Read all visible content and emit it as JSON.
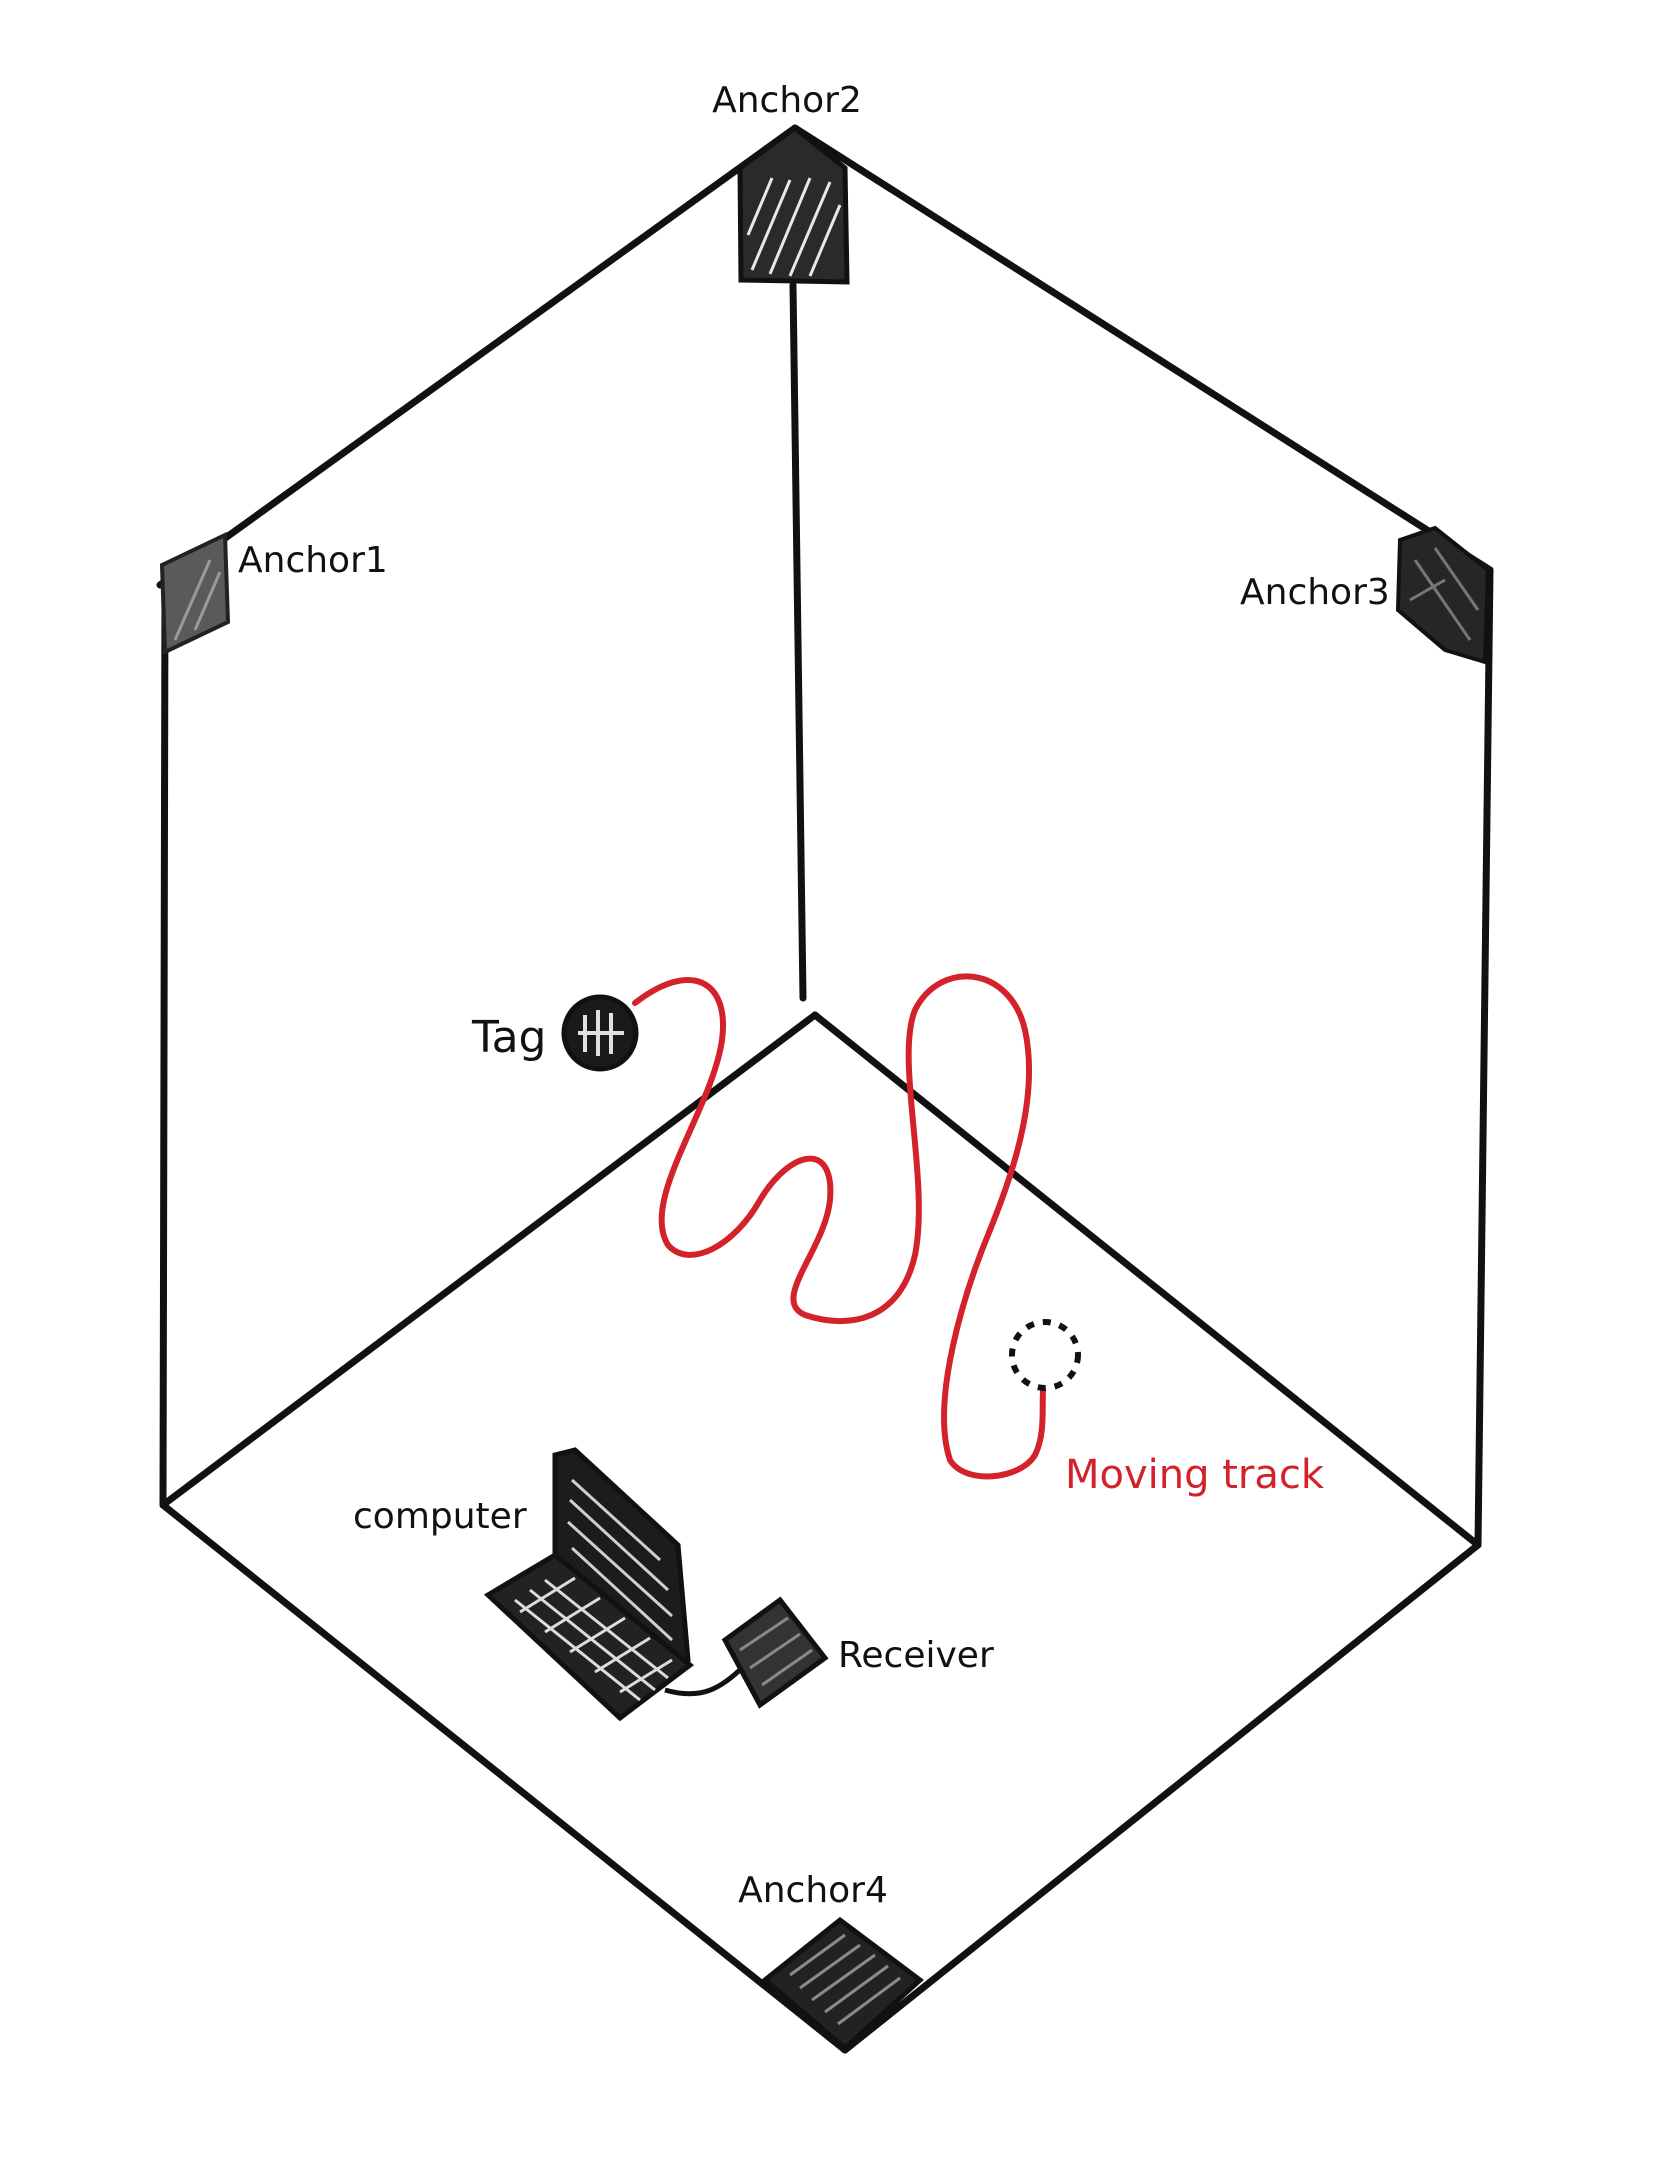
{
  "labels": {
    "anchor1": "Anchor1",
    "anchor2": "Anchor2",
    "anchor3": "Anchor3",
    "anchor4": "Anchor4",
    "tag": "Tag",
    "computer": "computer",
    "receiver": "Receiver",
    "moving_track": "Moving track"
  },
  "colors": {
    "line": "#111111",
    "track": "#d3222a",
    "background": "#ffffff"
  }
}
